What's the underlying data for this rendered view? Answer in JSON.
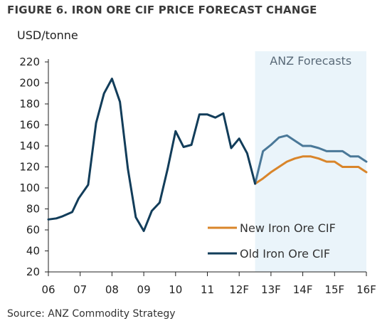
{
  "figure_title": "FIGURE 6. IRON ORE CIF PRICE FORECAST CHANGE",
  "source": "Source: ANZ Commodity Strategy",
  "colors": {
    "new": "#D9852A",
    "old_history": "#123D5A",
    "old_forecast": "#4A7898",
    "band": "#EAF4FA",
    "axis": "#222222"
  },
  "chart_data": {
    "type": "line",
    "title": "FIGURE 6. IRON ORE CIF PRICE FORECAST CHANGE",
    "ylabel": "USD/tonne",
    "xlabel": "",
    "ylim": [
      20,
      220
    ],
    "yticks": [
      20,
      40,
      60,
      80,
      100,
      120,
      140,
      160,
      180,
      200,
      220
    ],
    "xlim": [
      0,
      10
    ],
    "xticks": [
      "06",
      "07",
      "08",
      "09",
      "10",
      "11",
      "12F",
      "13F",
      "14F",
      "15F",
      "16F"
    ],
    "grid": false,
    "legend_position": "bottom-right",
    "forecast_band": {
      "label": "ANZ Forecasts",
      "x_start": 6.5,
      "x_end": 10
    },
    "series": [
      {
        "name": "Old Iron Ore CIF",
        "color": "#123D5A",
        "forecast_color": "#4A7898",
        "forecast_from": 6.5,
        "x": [
          0,
          0.25,
          0.45,
          0.75,
          0.95,
          1.25,
          1.5,
          1.75,
          2.0,
          2.25,
          2.5,
          2.75,
          3.0,
          3.25,
          3.5,
          3.75,
          4.0,
          4.25,
          4.5,
          4.75,
          5.0,
          5.25,
          5.5,
          5.75,
          6.0,
          6.25,
          6.5,
          6.75,
          7.0,
          7.25,
          7.5,
          7.75,
          8.0,
          8.25,
          8.5,
          8.75,
          9.0,
          9.25,
          9.5,
          9.75,
          10.0
        ],
        "y": [
          70,
          71,
          73,
          77,
          90,
          103,
          162,
          190,
          204,
          182,
          118,
          72,
          59,
          78,
          86,
          118,
          154,
          139,
          141,
          170,
          170,
          167,
          171,
          138,
          147,
          133,
          104,
          135,
          141,
          148,
          150,
          145,
          140,
          140,
          138,
          135,
          135,
          135,
          130,
          130,
          125
        ]
      },
      {
        "name": "New Iron Ore CIF",
        "color": "#D9852A",
        "x": [
          6.5,
          6.75,
          7.0,
          7.25,
          7.5,
          7.75,
          8.0,
          8.25,
          8.5,
          8.75,
          9.0,
          9.25,
          9.5,
          9.75,
          10.0
        ],
        "y": [
          104,
          109,
          115,
          120,
          125,
          128,
          130,
          130,
          128,
          125,
          125,
          120,
          120,
          120,
          115
        ]
      }
    ]
  }
}
